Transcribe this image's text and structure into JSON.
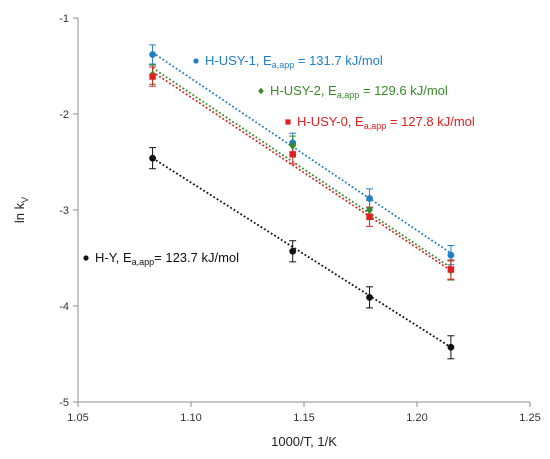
{
  "chart_data": {
    "type": "scatter",
    "title": "",
    "xlabel": "1000/T, 1/K",
    "ylabel_main": "ln k",
    "ylabel_sub": "V",
    "xlim": [
      1.05,
      1.25
    ],
    "ylim": [
      -5,
      -1
    ],
    "xticks": [
      "1.05",
      "1.10",
      "1.15",
      "1.20",
      "1.25"
    ],
    "yticks": [
      "-1",
      "-2",
      "-3",
      "-4",
      "-5"
    ],
    "grid": false,
    "series": [
      {
        "name": "H-USY-1",
        "color": "#1f7fc7",
        "marker": "circle",
        "x": [
          1.083,
          1.145,
          1.179,
          1.215
        ],
        "y": [
          -1.38,
          -2.3,
          -2.88,
          -3.47
        ],
        "err": [
          0.1,
          0.1,
          0.1,
          0.1
        ],
        "fit": [
          [
            1.083,
            -1.36
          ],
          [
            1.215,
            -3.45
          ]
        ],
        "label": {
          "name": "H-USY-1,",
          "prefix": "E",
          "sub": "a,app",
          "suffix": " = 131.7 kJ/mol"
        }
      },
      {
        "name": "H-USY-2",
        "color": "#3a8a2a",
        "marker": "diamond",
        "x": [
          1.083,
          1.145,
          1.179,
          1.215
        ],
        "y": [
          -1.59,
          -2.33,
          -3.0,
          -3.63
        ],
        "err": [
          0.1,
          0.1,
          0.1,
          0.1
        ],
        "fit": [
          [
            1.083,
            -1.52
          ],
          [
            1.215,
            -3.6
          ]
        ],
        "label": {
          "name": "H-USY-2,",
          "prefix": "E",
          "sub": "a,app",
          "suffix": " = 129.6 kJ/mol"
        }
      },
      {
        "name": "H-USY-0",
        "color": "#e01f1f",
        "marker": "square",
        "x": [
          1.083,
          1.145,
          1.179,
          1.215
        ],
        "y": [
          -1.61,
          -2.42,
          -3.07,
          -3.62
        ],
        "err": [
          0.1,
          0.1,
          0.1,
          0.1
        ],
        "fit": [
          [
            1.083,
            -1.56
          ],
          [
            1.215,
            -3.63
          ]
        ],
        "label": {
          "name": "H-USY-0,",
          "prefix": "E",
          "sub": "a,app",
          "suffix": " = 127.8 kJ/mol"
        }
      },
      {
        "name": "H-Y",
        "color": "#111111",
        "marker": "circle",
        "x": [
          1.083,
          1.145,
          1.179,
          1.215
        ],
        "y": [
          -2.46,
          -3.43,
          -3.91,
          -4.43
        ],
        "err": [
          0.11,
          0.11,
          0.11,
          0.12
        ],
        "fit": [
          [
            1.083,
            -2.46
          ],
          [
            1.215,
            -4.43
          ]
        ],
        "label": {
          "name": "H-Y,",
          "prefix": "E",
          "sub": "a,app",
          "suffix": "= 123.7 kJ/mol"
        }
      }
    ]
  }
}
